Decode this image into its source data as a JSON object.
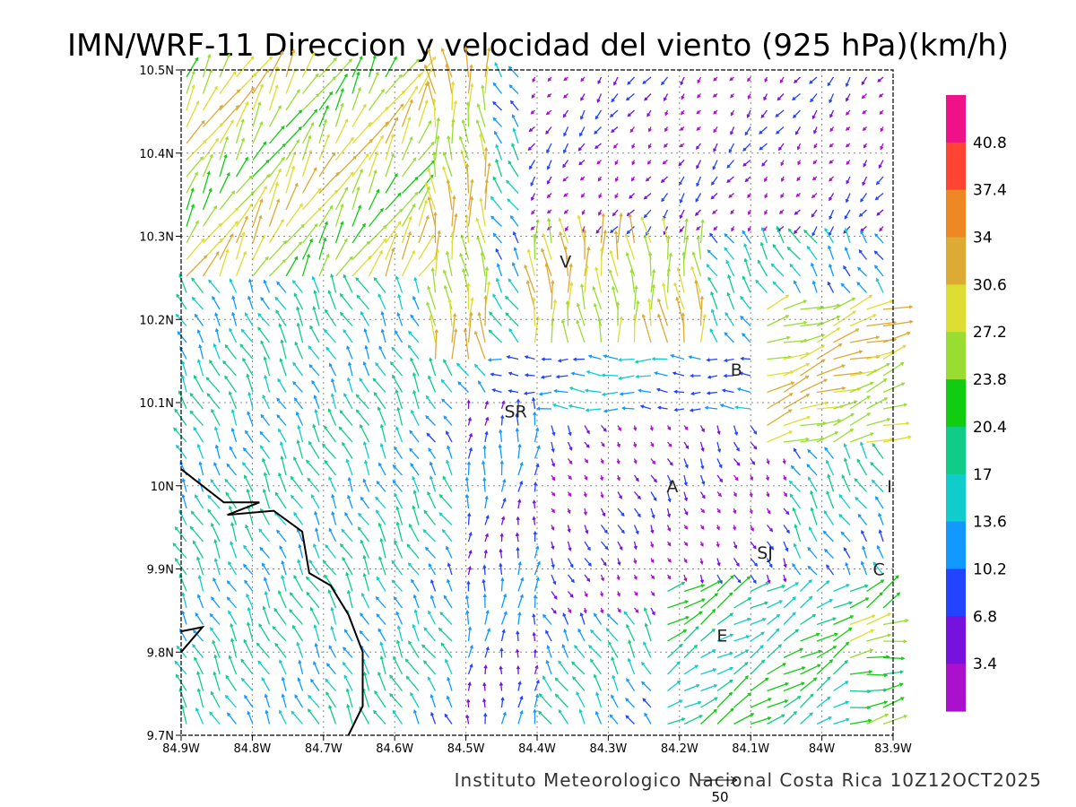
{
  "title": "IMN/WRF-11 Direccion y velocidad del viento (925 hPa)(km/h)",
  "footer": "Instituto Meteorologico Nacional Costa Rica 10Z12OCT2025",
  "reference_vector_label": "50",
  "map": {
    "lon_range": [
      -84.9,
      -83.9
    ],
    "lat_range": [
      9.7,
      10.5
    ],
    "lon_ticks": [
      {
        "value": -84.9,
        "label": "84.9W"
      },
      {
        "value": -84.8,
        "label": "84.8W"
      },
      {
        "value": -84.7,
        "label": "84.7W"
      },
      {
        "value": -84.6,
        "label": "84.6W"
      },
      {
        "value": -84.5,
        "label": "84.5W"
      },
      {
        "value": -84.4,
        "label": "84.4W"
      },
      {
        "value": -84.3,
        "label": "84.3W"
      },
      {
        "value": -84.2,
        "label": "84.2W"
      },
      {
        "value": -84.1,
        "label": "84.1W"
      },
      {
        "value": -84.0,
        "label": "84W"
      },
      {
        "value": -83.9,
        "label": "83.9W"
      }
    ],
    "lat_ticks": [
      {
        "value": 9.7,
        "label": "9.7N"
      },
      {
        "value": 9.8,
        "label": "9.8N"
      },
      {
        "value": 9.9,
        "label": "9.9N"
      },
      {
        "value": 10.0,
        "label": "10N"
      },
      {
        "value": 10.1,
        "label": "10.1N"
      },
      {
        "value": 10.2,
        "label": "10.2N"
      },
      {
        "value": 10.3,
        "label": "10.3N"
      },
      {
        "value": 10.4,
        "label": "10.4N"
      },
      {
        "value": 10.5,
        "label": "10.5N"
      }
    ],
    "grid": true,
    "city_labels": [
      {
        "text": "V",
        "lon": -84.36,
        "lat": 10.27
      },
      {
        "text": "SR",
        "lon": -84.43,
        "lat": 10.09
      },
      {
        "text": "B",
        "lon": -84.12,
        "lat": 10.14
      },
      {
        "text": "A",
        "lon": -84.21,
        "lat": 10.0
      },
      {
        "text": "SJ",
        "lon": -84.08,
        "lat": 9.92
      },
      {
        "text": "C",
        "lon": -83.92,
        "lat": 9.9
      },
      {
        "text": "E",
        "lon": -84.14,
        "lat": 9.82
      },
      {
        "text": "I",
        "lon": -83.905,
        "lat": 10.0
      }
    ],
    "coastline": [
      [
        -84.9,
        10.02
      ],
      [
        -84.84,
        9.98
      ],
      [
        -84.79,
        9.98
      ],
      [
        -84.835,
        9.965
      ],
      [
        -84.77,
        9.97
      ],
      [
        -84.73,
        9.945
      ],
      [
        -84.72,
        9.895
      ],
      [
        -84.69,
        9.88
      ],
      [
        -84.665,
        9.845
      ],
      [
        -84.645,
        9.8
      ],
      [
        -84.645,
        9.735
      ],
      [
        -84.665,
        9.7
      ]
    ],
    "coastline_south": [
      [
        -84.9,
        9.8
      ],
      [
        -84.87,
        9.83
      ],
      [
        -84.9,
        9.825
      ]
    ]
  },
  "colorbar": {
    "labels": [
      "40.8",
      "37.4",
      "34",
      "30.6",
      "27.2",
      "23.8",
      "20.4",
      "17",
      "13.6",
      "10.2",
      "6.8",
      "3.4"
    ],
    "colors": [
      "#ee1188",
      "#ff4433",
      "#ee8822",
      "#ddaa33",
      "#dddd33",
      "#99dd33",
      "#11cc11",
      "#11cc88",
      "#11cccc",
      "#1199ff",
      "#2244ff",
      "#7711dd",
      "#aa11cc"
    ]
  }
}
